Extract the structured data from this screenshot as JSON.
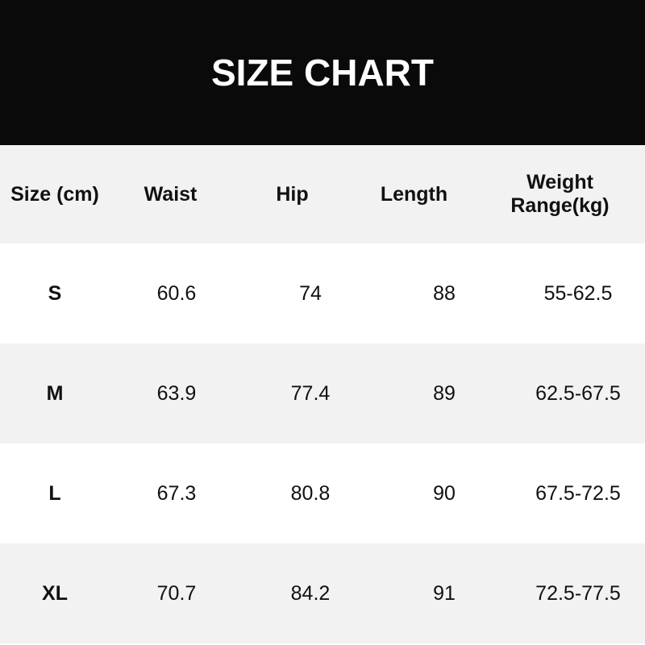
{
  "title": "SIZE CHART",
  "headers": [
    "Size (cm)",
    "Waist",
    "Hip",
    "Length",
    "Weight Range(kg)"
  ],
  "rows": [
    [
      "S",
      "60.6",
      "74",
      "88",
      "55-62.5"
    ],
    [
      "M",
      "63.9",
      "77.4",
      "89",
      "62.5-67.5"
    ],
    [
      "L",
      "67.3",
      "80.8",
      "90",
      "67.5-72.5"
    ],
    [
      "XL",
      "70.7",
      "84.2",
      "91",
      "72.5-77.5"
    ]
  ]
}
